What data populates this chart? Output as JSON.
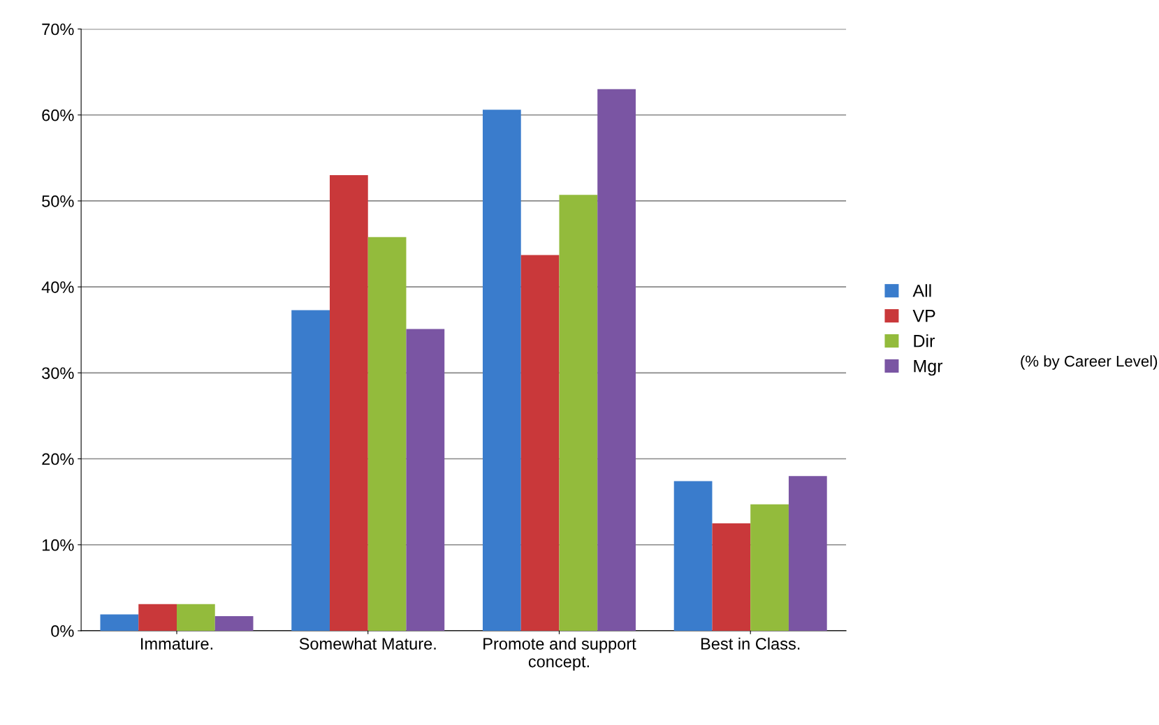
{
  "chart_data": {
    "type": "bar",
    "categories": [
      "Immature.",
      "Somewhat Mature.",
      "Promote and support\nconcept.",
      "Best in Class."
    ],
    "series": [
      {
        "name": "All",
        "color": "#3a7ccc",
        "values": [
          1.9,
          37.3,
          60.6,
          17.4
        ]
      },
      {
        "name": "VP",
        "color": "#c9383a",
        "values": [
          3.1,
          53.0,
          43.7,
          12.5
        ]
      },
      {
        "name": "Dir",
        "color": "#93bb3c",
        "values": [
          3.1,
          45.8,
          50.7,
          14.7
        ]
      },
      {
        "name": "Mgr",
        "color": "#7a55a3",
        "values": [
          1.7,
          35.1,
          63.0,
          18.0
        ]
      }
    ],
    "ylim": [
      0,
      70
    ],
    "yticks": [
      {
        "value": 0,
        "label": "0%"
      },
      {
        "value": 10,
        "label": "10%"
      },
      {
        "value": 20,
        "label": "20%"
      },
      {
        "value": 30,
        "label": "30%"
      },
      {
        "value": 40,
        "label": "40%"
      },
      {
        "value": 50,
        "label": "50%"
      },
      {
        "value": 60,
        "label": "60%"
      },
      {
        "value": 70,
        "label": "70%"
      }
    ],
    "grid": "y",
    "legend": "right",
    "annotations": [
      "(% by Career Level)"
    ]
  }
}
